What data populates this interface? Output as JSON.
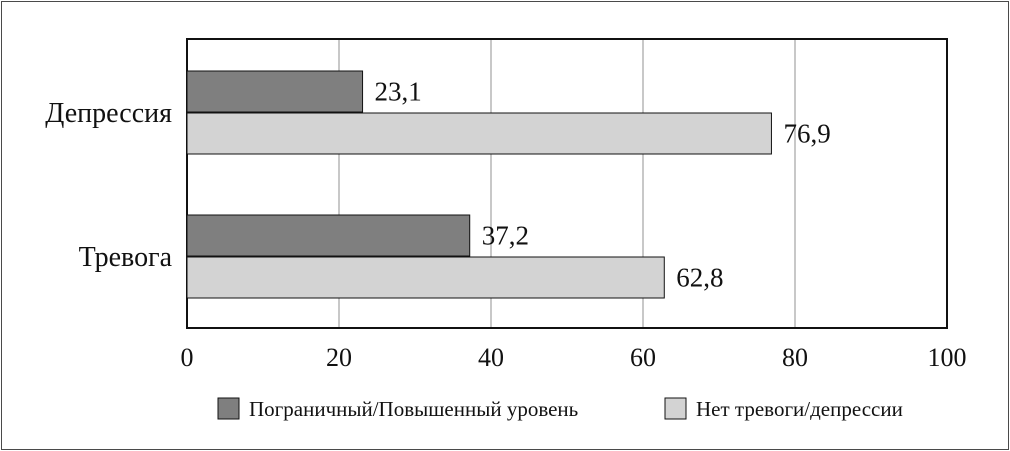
{
  "chart_data": {
    "type": "bar",
    "orientation": "horizontal",
    "categories": [
      "Депрессия",
      "Тревога"
    ],
    "series": [
      {
        "name": "Пограничный/Повышенный уровень",
        "values": [
          23.1,
          37.2
        ],
        "labels": [
          "23,1",
          "37,2"
        ],
        "color": "#7f7f7f"
      },
      {
        "name": "Нет тревоги/депрессии",
        "values": [
          76.9,
          62.8
        ],
        "labels": [
          "76,9",
          "62,8"
        ],
        "color": "#d3d3d3"
      }
    ],
    "xlim": [
      0,
      100
    ],
    "xticks": [
      0,
      20,
      40,
      60,
      80,
      100
    ],
    "xlabel": "",
    "ylabel": "",
    "title": "",
    "grid": true,
    "legend": "bottom"
  }
}
